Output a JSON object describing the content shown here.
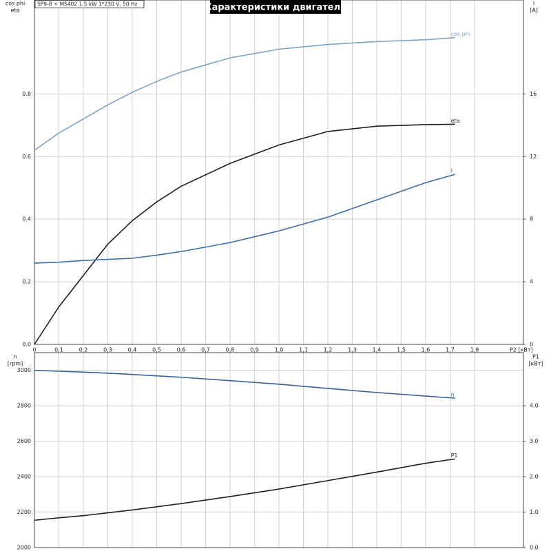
{
  "chart_data": [
    {
      "type": "line",
      "title": "Характеристики двигателя",
      "subtitle": "SP9-8 + MS402   1.5 kW   1*230 V, 50 Hz",
      "xlabel": "P2 [кВт]",
      "ylabel": [
        "cos phi",
        "eta"
      ],
      "y2label": [
        "I",
        "[A]"
      ],
      "x": [
        0,
        0.1,
        0.2,
        0.3,
        0.4,
        0.5,
        0.6,
        0.8,
        1.0,
        1.2,
        1.4,
        1.6,
        1.72
      ],
      "xlim": [
        0,
        2.0
      ],
      "xticks": [
        0,
        {
          "value": 0.1,
          "label": "0,1"
        },
        {
          "value": 0.2,
          "label": "0,2"
        },
        {
          "value": 0.3,
          "label": "0,3"
        },
        {
          "value": 0.4,
          "label": "0,4"
        },
        {
          "value": 0.5,
          "label": "0,5"
        },
        {
          "value": 0.6,
          "label": "0,6"
        },
        {
          "value": 0.7,
          "label": "0,7"
        },
        {
          "value": 0.8,
          "label": "0,8"
        },
        {
          "value": 0.9,
          "label": "0,9"
        },
        {
          "value": 1.0,
          "label": "1,0"
        },
        {
          "value": 1.1,
          "label": "1,1"
        },
        {
          "value": 1.2,
          "label": "1,2"
        },
        {
          "value": 1.3,
          "label": "1,3"
        },
        {
          "value": 1.4,
          "label": "1,4"
        },
        {
          "value": 1.5,
          "label": "1,5"
        },
        {
          "value": 1.6,
          "label": "1,6"
        },
        {
          "value": 1.7,
          "label": "1,7"
        },
        {
          "value": 1.8,
          "label": "1,8"
        }
      ],
      "ylim": [
        0,
        1.1
      ],
      "yticks": [
        {
          "value": 0,
          "label": "0.0"
        },
        {
          "value": 0.2,
          "label": "0.2"
        },
        {
          "value": 0.4,
          "label": "0.4"
        },
        {
          "value": 0.6,
          "label": "0.6"
        },
        {
          "value": 0.8,
          "label": "0.8"
        }
      ],
      "y2lim": [
        0,
        22
      ],
      "y2ticks": [
        0,
        4,
        8,
        12,
        16
      ],
      "grid": true,
      "series": [
        {
          "name": "cos phi",
          "color": "#7fa3c4",
          "values": [
            0.62,
            0.675,
            0.72,
            0.765,
            0.805,
            0.84,
            0.87,
            0.915,
            0.943,
            0.958,
            0.967,
            0.973,
            0.98
          ]
        },
        {
          "name": "eta",
          "color": "#1e1e1e",
          "values": [
            0,
            0.12,
            0.22,
            0.32,
            0.395,
            0.455,
            0.505,
            0.578,
            0.637,
            0.68,
            0.697,
            0.702,
            0.703
          ]
        },
        {
          "name": "I",
          "color": "#3a6ea5",
          "axis": "y2",
          "values": [
            5.19,
            5.25,
            5.36,
            5.43,
            5.5,
            5.7,
            5.93,
            6.5,
            7.25,
            8.13,
            9.23,
            10.33,
            10.86
          ]
        }
      ]
    },
    {
      "type": "line",
      "ylabel": [
        "n",
        "[rpm]"
      ],
      "y2label": [
        "P1",
        "[кВт]"
      ],
      "x": [
        0,
        0.1,
        0.2,
        0.3,
        0.4,
        0.5,
        0.6,
        0.8,
        1.0,
        1.2,
        1.4,
        1.6,
        1.72
      ],
      "xlim": [
        0,
        2.0
      ],
      "ylim": [
        2000,
        3100
      ],
      "yticks": [
        2000,
        2200,
        2400,
        2600,
        2800,
        3000
      ],
      "y2lim": [
        0,
        5.5
      ],
      "y2ticks": [
        {
          "value": 0,
          "label": "0.0"
        },
        {
          "value": 1,
          "label": "1.0"
        },
        {
          "value": 2,
          "label": "2.0"
        },
        {
          "value": 3,
          "label": "3.0"
        },
        {
          "value": 4,
          "label": "4.0"
        }
      ],
      "grid": true,
      "series": [
        {
          "name": "n",
          "color": "#3a5f95",
          "values": [
            3000,
            2995,
            2990,
            2984,
            2977,
            2969,
            2961,
            2942,
            2922,
            2898,
            2875,
            2855,
            2843
          ]
        },
        {
          "name": "P1",
          "color": "#1e1e1e",
          "axis": "y2",
          "values": [
            0.77,
            0.84,
            0.9,
            0.98,
            1.06,
            1.15,
            1.24,
            1.44,
            1.65,
            1.89,
            2.13,
            2.38,
            2.5
          ]
        }
      ]
    }
  ]
}
